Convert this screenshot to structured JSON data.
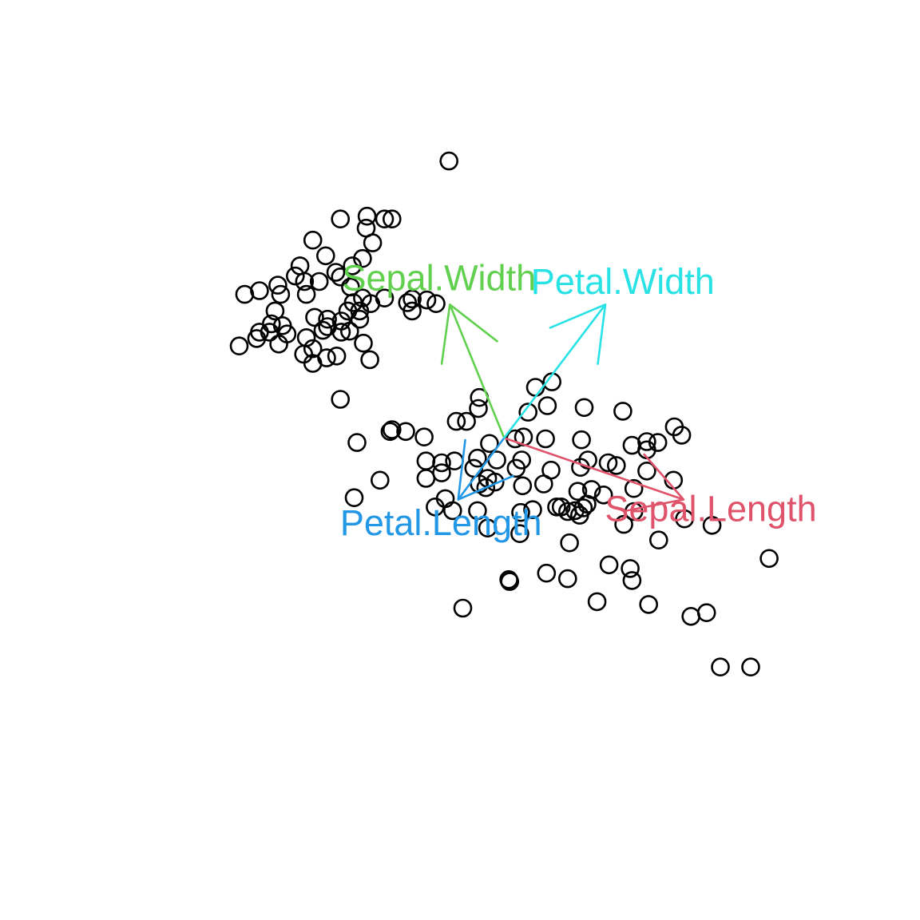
{
  "chart_data": {
    "type": "scatter",
    "title": "",
    "xlabel": "",
    "ylabel": "",
    "axes_visible": false,
    "grid": false,
    "xlim": [
      0,
      1
    ],
    "ylim": [
      0,
      1
    ],
    "points": [
      [
        0.488,
        0.825
      ],
      [
        0.37,
        0.762
      ],
      [
        0.398,
        0.752
      ],
      [
        0.418,
        0.762
      ],
      [
        0.399,
        0.765
      ],
      [
        0.426,
        0.762
      ],
      [
        0.34,
        0.739
      ],
      [
        0.394,
        0.719
      ],
      [
        0.405,
        0.736
      ],
      [
        0.383,
        0.711
      ],
      [
        0.354,
        0.722
      ],
      [
        0.365,
        0.704
      ],
      [
        0.347,
        0.694
      ],
      [
        0.326,
        0.711
      ],
      [
        0.321,
        0.7
      ],
      [
        0.331,
        0.694
      ],
      [
        0.37,
        0.699
      ],
      [
        0.381,
        0.688
      ],
      [
        0.282,
        0.684
      ],
      [
        0.333,
        0.68
      ],
      [
        0.394,
        0.676
      ],
      [
        0.418,
        0.676
      ],
      [
        0.266,
        0.68
      ],
      [
        0.305,
        0.68
      ],
      [
        0.302,
        0.69
      ],
      [
        0.403,
        0.67
      ],
      [
        0.384,
        0.671
      ],
      [
        0.443,
        0.671
      ],
      [
        0.474,
        0.67
      ],
      [
        0.448,
        0.662
      ],
      [
        0.299,
        0.662
      ],
      [
        0.448,
        0.675
      ],
      [
        0.464,
        0.674
      ],
      [
        0.391,
        0.662
      ],
      [
        0.378,
        0.662
      ],
      [
        0.371,
        0.651
      ],
      [
        0.38,
        0.64
      ],
      [
        0.356,
        0.645
      ],
      [
        0.333,
        0.633
      ],
      [
        0.33,
        0.615
      ],
      [
        0.402,
        0.609
      ],
      [
        0.34,
        0.605
      ],
      [
        0.355,
        0.611
      ],
      [
        0.366,
        0.613
      ],
      [
        0.342,
        0.655
      ],
      [
        0.279,
        0.632
      ],
      [
        0.26,
        0.624
      ],
      [
        0.307,
        0.646
      ],
      [
        0.295,
        0.648
      ],
      [
        0.37,
        0.566
      ],
      [
        0.303,
        0.626
      ],
      [
        0.282,
        0.639
      ],
      [
        0.293,
        0.639
      ],
      [
        0.312,
        0.637
      ],
      [
        0.351,
        0.641
      ],
      [
        0.356,
        0.653
      ],
      [
        0.391,
        0.653
      ],
      [
        0.34,
        0.621
      ],
      [
        0.371,
        0.639
      ],
      [
        0.395,
        0.627
      ],
      [
        0.582,
        0.579
      ],
      [
        0.6,
        0.585
      ],
      [
        0.574,
        0.552
      ],
      [
        0.595,
        0.559
      ],
      [
        0.521,
        0.568
      ],
      [
        0.635,
        0.557
      ],
      [
        0.677,
        0.553
      ],
      [
        0.733,
        0.536
      ],
      [
        0.741,
        0.527
      ],
      [
        0.52,
        0.556
      ],
      [
        0.496,
        0.542
      ],
      [
        0.507,
        0.542
      ],
      [
        0.532,
        0.518
      ],
      [
        0.426,
        0.533
      ],
      [
        0.441,
        0.531
      ],
      [
        0.424,
        0.531
      ],
      [
        0.461,
        0.525
      ],
      [
        0.388,
        0.519
      ],
      [
        0.56,
        0.523
      ],
      [
        0.569,
        0.525
      ],
      [
        0.632,
        0.522
      ],
      [
        0.593,
        0.523
      ],
      [
        0.703,
        0.52
      ],
      [
        0.687,
        0.516
      ],
      [
        0.703,
        0.511
      ],
      [
        0.715,
        0.519
      ],
      [
        0.639,
        0.5
      ],
      [
        0.567,
        0.5
      ],
      [
        0.463,
        0.499
      ],
      [
        0.48,
        0.497
      ],
      [
        0.494,
        0.499
      ],
      [
        0.519,
        0.502
      ],
      [
        0.54,
        0.5
      ],
      [
        0.515,
        0.491
      ],
      [
        0.561,
        0.491
      ],
      [
        0.599,
        0.489
      ],
      [
        0.631,
        0.492
      ],
      [
        0.661,
        0.497
      ],
      [
        0.67,
        0.494
      ],
      [
        0.703,
        0.488
      ],
      [
        0.732,
        0.478
      ],
      [
        0.689,
        0.469
      ],
      [
        0.463,
        0.48
      ],
      [
        0.48,
        0.486
      ],
      [
        0.521,
        0.474
      ],
      [
        0.53,
        0.48
      ],
      [
        0.538,
        0.476
      ],
      [
        0.528,
        0.47
      ],
      [
        0.568,
        0.472
      ],
      [
        0.591,
        0.474
      ],
      [
        0.628,
        0.466
      ],
      [
        0.643,
        0.468
      ],
      [
        0.656,
        0.462
      ],
      [
        0.638,
        0.452
      ],
      [
        0.579,
        0.446
      ],
      [
        0.566,
        0.443
      ],
      [
        0.484,
        0.458
      ],
      [
        0.473,
        0.449
      ],
      [
        0.492,
        0.445
      ],
      [
        0.519,
        0.445
      ],
      [
        0.61,
        0.449
      ],
      [
        0.617,
        0.444
      ],
      [
        0.625,
        0.445
      ],
      [
        0.63,
        0.44
      ],
      [
        0.634,
        0.448
      ],
      [
        0.605,
        0.449
      ],
      [
        0.689,
        0.444
      ],
      [
        0.678,
        0.43
      ],
      [
        0.744,
        0.436
      ],
      [
        0.774,
        0.429
      ],
      [
        0.413,
        0.478
      ],
      [
        0.385,
        0.459
      ],
      [
        0.53,
        0.426
      ],
      [
        0.565,
        0.42
      ],
      [
        0.619,
        0.41
      ],
      [
        0.716,
        0.413
      ],
      [
        0.662,
        0.386
      ],
      [
        0.594,
        0.377
      ],
      [
        0.617,
        0.371
      ],
      [
        0.685,
        0.382
      ],
      [
        0.553,
        0.37
      ],
      [
        0.554,
        0.368
      ],
      [
        0.687,
        0.369
      ],
      [
        0.649,
        0.346
      ],
      [
        0.705,
        0.343
      ],
      [
        0.751,
        0.33
      ],
      [
        0.768,
        0.334
      ],
      [
        0.503,
        0.339
      ],
      [
        0.783,
        0.275
      ],
      [
        0.816,
        0.275
      ],
      [
        0.836,
        0.393
      ]
    ],
    "vectors": [
      {
        "name": "Sepal.Length",
        "color": "#DF536B",
        "x": 0.743,
        "y": 0.457
      },
      {
        "name": "Sepal.Width",
        "color": "#61D04F",
        "x": 0.489,
        "y": 0.669
      },
      {
        "name": "Petal.Length",
        "color": "#2297E6",
        "x": 0.498,
        "y": 0.457
      },
      {
        "name": "Petal.Width",
        "color": "#28E2E5",
        "x": 0.658,
        "y": 0.669
      }
    ],
    "vector_origin": {
      "x": 0.548,
      "y": 0.524
    }
  }
}
